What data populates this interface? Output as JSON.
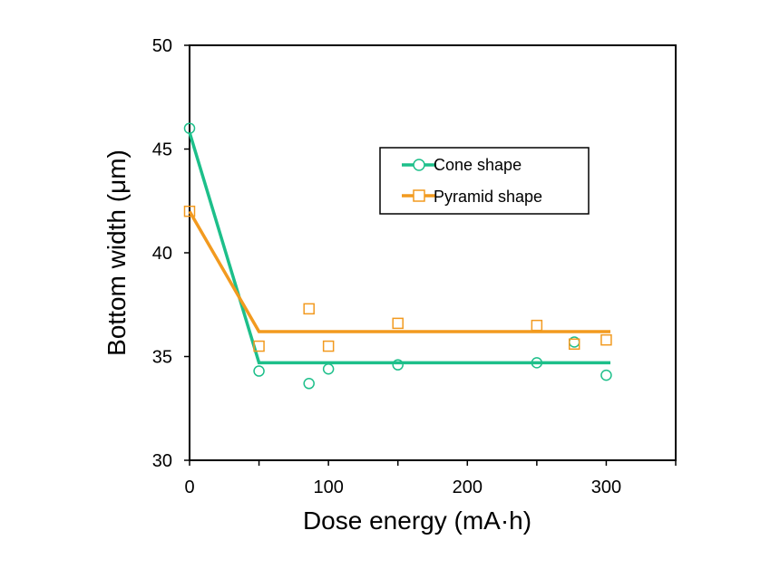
{
  "colors": {
    "background": "#ffffff",
    "cone": "#1dbf8a",
    "pyramid": "#f29a1f",
    "axis": "#000000"
  },
  "chart_data": {
    "type": "scatter",
    "title": "",
    "xlabel": "Dose energy (mA·h)",
    "ylabel": "Bottom width (μm)",
    "xlim": [
      0,
      350
    ],
    "ylim": [
      30,
      50
    ],
    "xticks": [
      0,
      100,
      200,
      300
    ],
    "yticks": [
      30,
      35,
      40,
      45,
      50
    ],
    "grid": false,
    "legend_position": "upper-right",
    "series": [
      {
        "name": "Cone shape",
        "marker": "circle",
        "color": "#1dbf8a",
        "points": [
          {
            "x": 0,
            "y": 46.0
          },
          {
            "x": 50,
            "y": 34.3
          },
          {
            "x": 86,
            "y": 33.7
          },
          {
            "x": 100,
            "y": 34.4
          },
          {
            "x": 150,
            "y": 34.6
          },
          {
            "x": 250,
            "y": 34.7
          },
          {
            "x": 277,
            "y": 35.7
          },
          {
            "x": 300,
            "y": 34.1
          }
        ],
        "trend": [
          {
            "x": 0,
            "y": 45.8
          },
          {
            "x": 50,
            "y": 34.7
          },
          {
            "x": 303,
            "y": 34.7
          }
        ]
      },
      {
        "name": "Pyramid shape",
        "marker": "square",
        "color": "#f29a1f",
        "points": [
          {
            "x": 0,
            "y": 42.0
          },
          {
            "x": 50,
            "y": 35.5
          },
          {
            "x": 86,
            "y": 37.3
          },
          {
            "x": 100,
            "y": 35.5
          },
          {
            "x": 150,
            "y": 36.6
          },
          {
            "x": 250,
            "y": 36.5
          },
          {
            "x": 277,
            "y": 35.6
          },
          {
            "x": 300,
            "y": 35.8
          }
        ],
        "trend": [
          {
            "x": 0,
            "y": 42.0
          },
          {
            "x": 50,
            "y": 36.2
          },
          {
            "x": 303,
            "y": 36.2
          }
        ]
      }
    ]
  }
}
